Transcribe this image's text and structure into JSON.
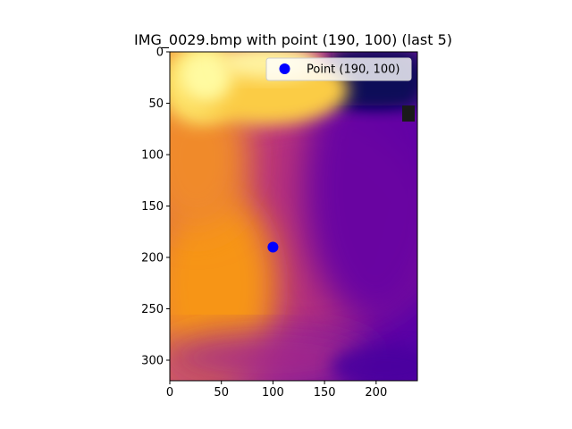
{
  "chart_data": {
    "type": "heatmap",
    "title": "IMG_0029.bmp with point (190, 100) (last 5)",
    "xlabel": "",
    "ylabel": "",
    "xlim": [
      0,
      240
    ],
    "ylim": [
      320,
      0
    ],
    "x_ticks": [
      0,
      50,
      100,
      150,
      200
    ],
    "y_ticks": [
      0,
      50,
      100,
      150,
      200,
      250,
      300
    ],
    "colormap": "plasma",
    "grid": false,
    "legend": {
      "placement": "top-right"
    },
    "series": [
      {
        "name": "Point (190, 100)",
        "type": "scatter",
        "color": "#0000ff",
        "points": [
          {
            "x": 100,
            "y": 190
          }
        ]
      }
    ]
  }
}
